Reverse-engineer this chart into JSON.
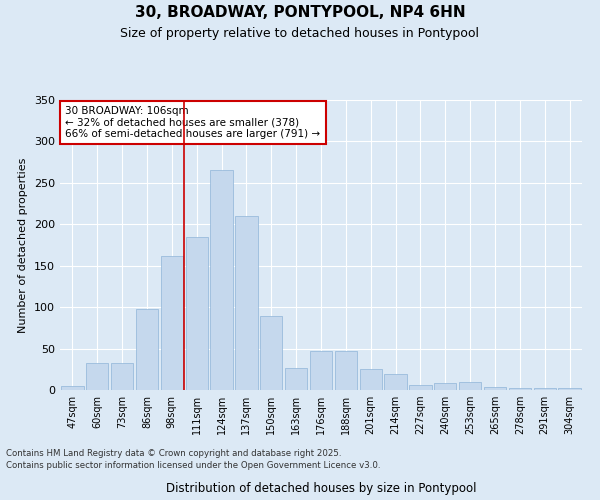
{
  "title": "30, BROADWAY, PONTYPOOL, NP4 6HN",
  "subtitle": "Size of property relative to detached houses in Pontypool",
  "xlabel": "Distribution of detached houses by size in Pontypool",
  "ylabel": "Number of detached properties",
  "categories": [
    "47sqm",
    "60sqm",
    "73sqm",
    "86sqm",
    "98sqm",
    "111sqm",
    "124sqm",
    "137sqm",
    "150sqm",
    "163sqm",
    "176sqm",
    "188sqm",
    "201sqm",
    "214sqm",
    "227sqm",
    "240sqm",
    "253sqm",
    "265sqm",
    "278sqm",
    "291sqm",
    "304sqm"
  ],
  "values": [
    5,
    33,
    33,
    98,
    162,
    185,
    265,
    210,
    89,
    27,
    47,
    47,
    25,
    19,
    6,
    9,
    10,
    4,
    2,
    2,
    3
  ],
  "bar_color": "#c5d8ed",
  "bar_edge_color": "#8fb4d8",
  "background_color": "#dce9f5",
  "fig_background_color": "#dce9f5",
  "grid_color": "#ffffff",
  "vline_color": "#cc0000",
  "vline_x_index": 5,
  "annotation_title": "30 BROADWAY: 106sqm",
  "annotation_line1": "← 32% of detached houses are smaller (378)",
  "annotation_line2": "66% of semi-detached houses are larger (791) →",
  "annotation_box_color": "#cc0000",
  "ylim": [
    0,
    350
  ],
  "yticks": [
    0,
    50,
    100,
    150,
    200,
    250,
    300,
    350
  ],
  "title_fontsize": 11,
  "subtitle_fontsize": 9,
  "footer_line1": "Contains HM Land Registry data © Crown copyright and database right 2025.",
  "footer_line2": "Contains public sector information licensed under the Open Government Licence v3.0."
}
